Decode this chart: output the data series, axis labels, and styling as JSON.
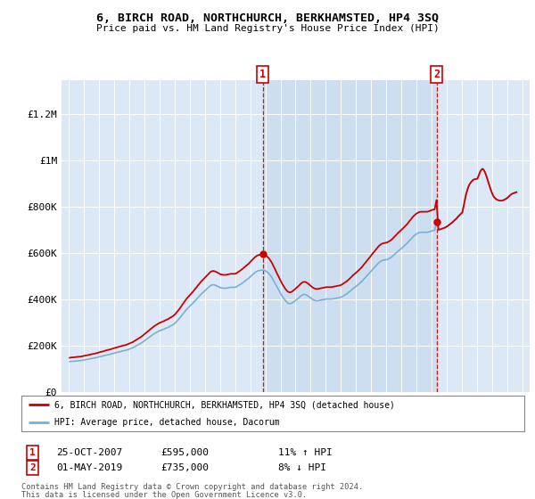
{
  "title": "6, BIRCH ROAD, NORTHCHURCH, BERKHAMSTED, HP4 3SQ",
  "subtitle": "Price paid vs. HM Land Registry's House Price Index (HPI)",
  "ylabel_ticks": [
    "£0",
    "£200K",
    "£400K",
    "£600K",
    "£800K",
    "£1M",
    "£1.2M"
  ],
  "ytick_values": [
    0,
    200000,
    400000,
    600000,
    800000,
    1000000,
    1200000
  ],
  "ylim": [
    0,
    1350000
  ],
  "xlim_start": 1994.5,
  "xlim_end": 2025.5,
  "plot_bg_color": "#dce8f5",
  "shade_color": "#c8daf0",
  "sale1_date": "25-OCT-2007",
  "sale1_price": 595000,
  "sale1_pct": "11% ↑ HPI",
  "sale1_x": 2007.82,
  "sale2_date": "01-MAY-2019",
  "sale2_price": 735000,
  "sale2_pct": "8% ↓ HPI",
  "sale2_x": 2019.33,
  "legend_label_red": "6, BIRCH ROAD, NORTHCHURCH, BERKHAMSTED, HP4 3SQ (detached house)",
  "legend_label_blue": "HPI: Average price, detached house, Dacorum",
  "footer1": "Contains HM Land Registry data © Crown copyright and database right 2024.",
  "footer2": "This data is licensed under the Open Government Licence v3.0.",
  "red_color": "#cc0000",
  "blue_color": "#7ab0d4",
  "hpi_monthly_x": [
    1995.04,
    1995.12,
    1995.21,
    1995.29,
    1995.38,
    1995.46,
    1995.54,
    1995.63,
    1995.71,
    1995.79,
    1995.88,
    1995.96,
    1996.04,
    1996.12,
    1996.21,
    1996.29,
    1996.38,
    1996.46,
    1996.54,
    1996.63,
    1996.71,
    1996.79,
    1996.88,
    1996.96,
    1997.04,
    1997.12,
    1997.21,
    1997.29,
    1997.38,
    1997.46,
    1997.54,
    1997.63,
    1997.71,
    1997.79,
    1997.88,
    1997.96,
    1998.04,
    1998.12,
    1998.21,
    1998.29,
    1998.38,
    1998.46,
    1998.54,
    1998.63,
    1998.71,
    1998.79,
    1998.88,
    1998.96,
    1999.04,
    1999.12,
    1999.21,
    1999.29,
    1999.38,
    1999.46,
    1999.54,
    1999.63,
    1999.71,
    1999.79,
    1999.88,
    1999.96,
    2000.04,
    2000.12,
    2000.21,
    2000.29,
    2000.38,
    2000.46,
    2000.54,
    2000.63,
    2000.71,
    2000.79,
    2000.88,
    2000.96,
    2001.04,
    2001.12,
    2001.21,
    2001.29,
    2001.38,
    2001.46,
    2001.54,
    2001.63,
    2001.71,
    2001.79,
    2001.88,
    2001.96,
    2002.04,
    2002.12,
    2002.21,
    2002.29,
    2002.38,
    2002.46,
    2002.54,
    2002.63,
    2002.71,
    2002.79,
    2002.88,
    2002.96,
    2003.04,
    2003.12,
    2003.21,
    2003.29,
    2003.38,
    2003.46,
    2003.54,
    2003.63,
    2003.71,
    2003.79,
    2003.88,
    2003.96,
    2004.04,
    2004.12,
    2004.21,
    2004.29,
    2004.38,
    2004.46,
    2004.54,
    2004.63,
    2004.71,
    2004.79,
    2004.88,
    2004.96,
    2005.04,
    2005.12,
    2005.21,
    2005.29,
    2005.38,
    2005.46,
    2005.54,
    2005.63,
    2005.71,
    2005.79,
    2005.88,
    2005.96,
    2006.04,
    2006.12,
    2006.21,
    2006.29,
    2006.38,
    2006.46,
    2006.54,
    2006.63,
    2006.71,
    2006.79,
    2006.88,
    2006.96,
    2007.04,
    2007.12,
    2007.21,
    2007.29,
    2007.38,
    2007.46,
    2007.54,
    2007.63,
    2007.71,
    2007.82,
    2007.96,
    2008.04,
    2008.12,
    2008.21,
    2008.29,
    2008.38,
    2008.46,
    2008.54,
    2008.63,
    2008.71,
    2008.79,
    2008.88,
    2008.96,
    2009.04,
    2009.12,
    2009.21,
    2009.29,
    2009.38,
    2009.46,
    2009.54,
    2009.63,
    2009.71,
    2009.79,
    2009.88,
    2009.96,
    2010.04,
    2010.12,
    2010.21,
    2010.29,
    2010.38,
    2010.46,
    2010.54,
    2010.63,
    2010.71,
    2010.79,
    2010.88,
    2010.96,
    2011.04,
    2011.12,
    2011.21,
    2011.29,
    2011.38,
    2011.46,
    2011.54,
    2011.63,
    2011.71,
    2011.79,
    2011.88,
    2011.96,
    2012.04,
    2012.12,
    2012.21,
    2012.29,
    2012.38,
    2012.46,
    2012.54,
    2012.63,
    2012.71,
    2012.79,
    2012.88,
    2012.96,
    2013.04,
    2013.12,
    2013.21,
    2013.29,
    2013.38,
    2013.46,
    2013.54,
    2013.63,
    2013.71,
    2013.79,
    2013.88,
    2013.96,
    2014.04,
    2014.12,
    2014.21,
    2014.29,
    2014.38,
    2014.46,
    2014.54,
    2014.63,
    2014.71,
    2014.79,
    2014.88,
    2014.96,
    2015.04,
    2015.12,
    2015.21,
    2015.29,
    2015.38,
    2015.46,
    2015.54,
    2015.63,
    2015.71,
    2015.79,
    2015.88,
    2015.96,
    2016.04,
    2016.12,
    2016.21,
    2016.29,
    2016.38,
    2016.46,
    2016.54,
    2016.63,
    2016.71,
    2016.79,
    2016.88,
    2016.96,
    2017.04,
    2017.12,
    2017.21,
    2017.29,
    2017.38,
    2017.46,
    2017.54,
    2017.63,
    2017.71,
    2017.79,
    2017.88,
    2017.96,
    2018.04,
    2018.12,
    2018.21,
    2018.29,
    2018.38,
    2018.46,
    2018.54,
    2018.63,
    2018.71,
    2018.79,
    2018.88,
    2018.96,
    2019.04,
    2019.12,
    2019.21,
    2019.33,
    2019.46,
    2019.54,
    2019.63,
    2019.71,
    2019.79,
    2019.88,
    2019.96,
    2020.04,
    2020.12,
    2020.21,
    2020.29,
    2020.38,
    2020.46,
    2020.54,
    2020.63,
    2020.71,
    2020.79,
    2020.88,
    2020.96,
    2021.04,
    2021.12,
    2021.21,
    2021.29,
    2021.38,
    2021.46,
    2021.54,
    2021.63,
    2021.71,
    2021.79,
    2021.88,
    2021.96,
    2022.04,
    2022.12,
    2022.21,
    2022.29,
    2022.38,
    2022.46,
    2022.54,
    2022.63,
    2022.71,
    2022.79,
    2022.88,
    2022.96,
    2023.04,
    2023.12,
    2023.21,
    2023.29,
    2023.38,
    2023.46,
    2023.54,
    2023.63,
    2023.71,
    2023.79,
    2023.88,
    2023.96,
    2024.04,
    2024.12,
    2024.21,
    2024.29,
    2024.38,
    2024.46,
    2024.54,
    2024.63
  ],
  "hpi_monthly_v": [
    130000,
    131000,
    131500,
    132000,
    132500,
    133000,
    133500,
    134000,
    134500,
    135000,
    136000,
    137000,
    138000,
    139000,
    140000,
    141000,
    142000,
    143000,
    144000,
    145000,
    146000,
    147500,
    149000,
    150500,
    152000,
    153000,
    154000,
    155500,
    157000,
    158500,
    160000,
    161000,
    162000,
    163500,
    165000,
    167000,
    168000,
    169500,
    171000,
    172000,
    173500,
    175000,
    176500,
    177500,
    178500,
    180000,
    182000,
    184000,
    186000,
    188000,
    190000,
    193000,
    196000,
    199000,
    202000,
    205000,
    208000,
    211000,
    215000,
    219000,
    223000,
    227000,
    231000,
    235000,
    239000,
    243000,
    247000,
    251000,
    254000,
    257000,
    260000,
    263000,
    265000,
    267000,
    269000,
    271000,
    274000,
    276000,
    278000,
    281000,
    284000,
    287000,
    290000,
    294000,
    298000,
    304000,
    310000,
    316000,
    323000,
    330000,
    337000,
    344000,
    351000,
    357000,
    363000,
    368000,
    373000,
    378000,
    384000,
    390000,
    396000,
    402000,
    408000,
    414000,
    420000,
    425000,
    430000,
    435000,
    440000,
    445000,
    450000,
    455000,
    460000,
    462000,
    463000,
    462000,
    460000,
    458000,
    455000,
    452000,
    450000,
    449000,
    448000,
    448000,
    448000,
    449000,
    450000,
    451000,
    452000,
    452000,
    452000,
    452000,
    453000,
    456000,
    459000,
    462000,
    466000,
    470000,
    474000,
    478000,
    482000,
    486000,
    490000,
    495000,
    500000,
    505000,
    510000,
    515000,
    519000,
    522000,
    524000,
    525000,
    526000,
    527000,
    525000,
    522000,
    518000,
    513000,
    507000,
    499000,
    491000,
    481000,
    471000,
    461000,
    451000,
    441000,
    431000,
    422000,
    413000,
    405000,
    397000,
    390000,
    385000,
    382000,
    381000,
    382000,
    385000,
    389000,
    393000,
    397000,
    401000,
    406000,
    411000,
    416000,
    419000,
    421000,
    421000,
    419000,
    416000,
    412000,
    408000,
    404000,
    400000,
    397000,
    395000,
    394000,
    394000,
    395000,
    396000,
    397000,
    398000,
    399000,
    400000,
    401000,
    401000,
    401000,
    401000,
    401000,
    402000,
    403000,
    404000,
    405000,
    406000,
    407000,
    408000,
    410000,
    413000,
    416000,
    419000,
    423000,
    427000,
    431000,
    436000,
    441000,
    446000,
    450000,
    454000,
    458000,
    462000,
    467000,
    472000,
    477000,
    483000,
    489000,
    495000,
    501000,
    507000,
    513000,
    519000,
    525000,
    531000,
    537000,
    543000,
    549000,
    555000,
    560000,
    564000,
    567000,
    569000,
    570000,
    571000,
    572000,
    574000,
    577000,
    580000,
    584000,
    589000,
    594000,
    599000,
    604000,
    609000,
    614000,
    618000,
    622000,
    627000,
    632000,
    637000,
    642000,
    648000,
    654000,
    660000,
    666000,
    672000,
    677000,
    681000,
    684000,
    687000,
    689000,
    690000,
    690000,
    690000,
    690000,
    690000,
    690000,
    691000,
    693000,
    695000,
    697000,
    698000,
    699000,
    735000,
    701000,
    702000,
    704000,
    706000,
    708000,
    710000,
    713000,
    716000,
    720000,
    724000,
    728000,
    733000,
    738000,
    743000,
    748000,
    754000,
    760000,
    766000,
    771000,
    776000,
    800000,
    830000,
    855000,
    875000,
    890000,
    900000,
    908000,
    914000,
    918000,
    920000,
    921000,
    922000,
    935000,
    950000,
    960000,
    965000,
    960000,
    950000,
    935000,
    918000,
    900000,
    883000,
    868000,
    855000,
    845000,
    838000,
    833000,
    830000,
    828000,
    827000,
    827000,
    828000,
    830000,
    833000,
    836000,
    840000,
    845000,
    850000,
    855000,
    858000,
    860000,
    862000,
    864000
  ]
}
